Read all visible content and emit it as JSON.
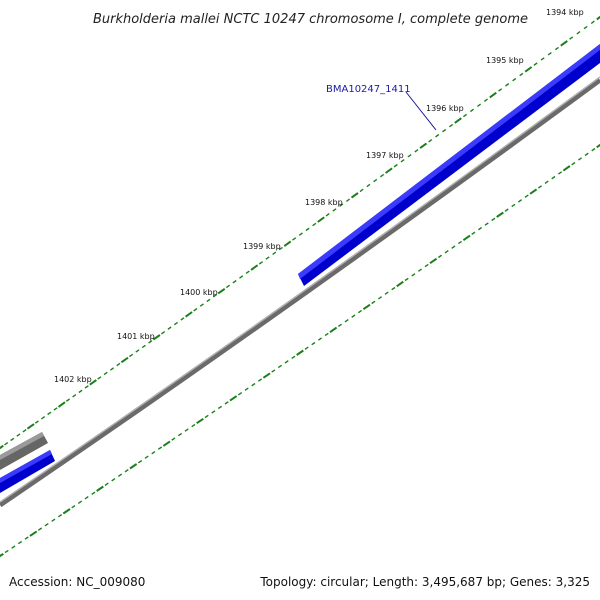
{
  "title": "Burkholderia mallei NCTC 10247 chromosome I, complete genome",
  "ruler": {
    "unit": "kbp",
    "major_labels": [
      "1394 kbp",
      "1395 kbp",
      "1396 kbp",
      "1397 kbp",
      "1398 kbp",
      "1399 kbp",
      "1400 kbp",
      "1401 kbp",
      "1402 kbp"
    ]
  },
  "genes": [
    {
      "name": "BMA10247_1411",
      "strand": "forward",
      "color": "#0000ee"
    }
  ],
  "colors": {
    "forward_gene": "#0000ee",
    "reverse_gene": "#666666",
    "backbone": "#777777",
    "ticks": "#1a7f1a"
  },
  "footer": {
    "accession": "Accession: NC_009080",
    "summary": "Topology: circular; Length: 3,495,687 bp; Genes: 3,325"
  }
}
